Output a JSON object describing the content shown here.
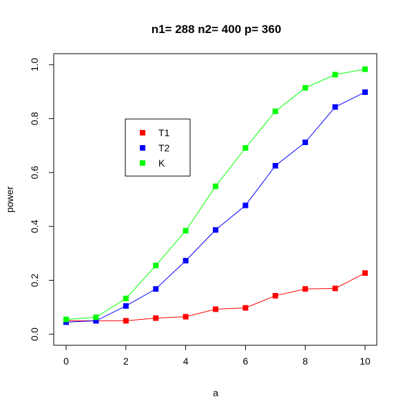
{
  "chart_data": {
    "type": "line",
    "title": "n1= 288 n2= 400 p= 360",
    "xlabel": "a",
    "ylabel": "power",
    "xlim": [
      0,
      10
    ],
    "ylim": [
      0,
      1
    ],
    "xticks": [
      "0",
      "2",
      "4",
      "6",
      "8",
      "10"
    ],
    "yticks": [
      "0.0",
      "0.2",
      "0.4",
      "0.6",
      "0.8",
      "1.0"
    ],
    "grid": false,
    "legend_position": "upper-left",
    "x": [
      0,
      1,
      2,
      3,
      4,
      5,
      6,
      7,
      8,
      9,
      10
    ],
    "series": [
      {
        "name": "T1",
        "color": "#ff0000",
        "values": [
          0.05,
          0.05,
          0.05,
          0.06,
          0.065,
          0.093,
          0.098,
          0.143,
          0.168,
          0.17,
          0.227
        ]
      },
      {
        "name": "T2",
        "color": "#0000ff",
        "values": [
          0.045,
          0.05,
          0.105,
          0.168,
          0.273,
          0.387,
          0.478,
          0.625,
          0.712,
          0.843,
          0.898
        ]
      },
      {
        "name": "K",
        "color": "#00ff00",
        "values": [
          0.055,
          0.063,
          0.133,
          0.255,
          0.384,
          0.549,
          0.691,
          0.827,
          0.914,
          0.963,
          0.983
        ]
      }
    ]
  }
}
